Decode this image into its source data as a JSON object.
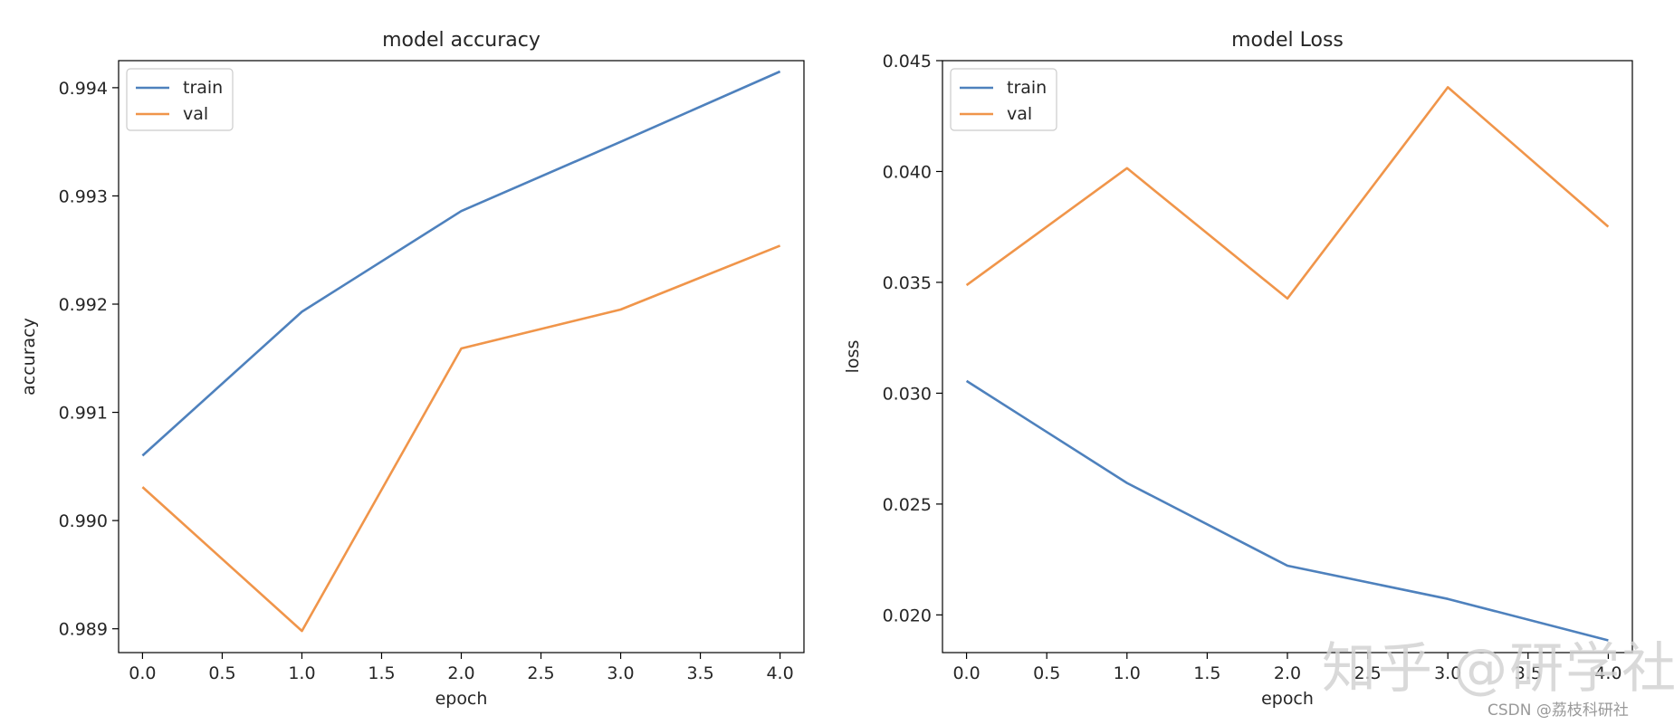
{
  "chart_data": [
    {
      "type": "line",
      "title": "model accuracy",
      "xlabel": "epoch",
      "ylabel": "accuracy",
      "x": [
        0,
        1,
        2,
        3,
        4
      ],
      "series": [
        {
          "name": "train",
          "color": "#4e81bd",
          "values": [
            0.9906,
            0.99193,
            0.99286,
            0.9935,
            0.99415
          ]
        },
        {
          "name": "val",
          "color": "#f0954a",
          "values": [
            0.99031,
            0.98898,
            0.99159,
            0.99195,
            0.99254
          ]
        }
      ],
      "xlim": [
        -0.15,
        4.15
      ],
      "ylim": [
        0.98878,
        0.99425
      ],
      "xticks": [
        0.0,
        0.5,
        1.0,
        1.5,
        2.0,
        2.5,
        3.0,
        3.5,
        4.0
      ],
      "xtick_labels": [
        "0.0",
        "0.5",
        "1.0",
        "1.5",
        "2.0",
        "2.5",
        "3.0",
        "3.5",
        "4.0"
      ],
      "yticks": [
        0.989,
        0.99,
        0.991,
        0.992,
        0.993,
        0.994
      ],
      "ytick_labels": [
        "0.989",
        "0.990",
        "0.991",
        "0.992",
        "0.993",
        "0.994"
      ],
      "grid": false,
      "legend": "upper-left"
    },
    {
      "type": "line",
      "title": "model Loss",
      "xlabel": "epoch",
      "ylabel": "loss",
      "x": [
        0,
        1,
        2,
        3,
        4
      ],
      "series": [
        {
          "name": "train",
          "color": "#4e81bd",
          "values": [
            0.03055,
            0.02595,
            0.02222,
            0.02072,
            0.01885
          ]
        },
        {
          "name": "val",
          "color": "#f0954a",
          "values": [
            0.03487,
            0.04015,
            0.03427,
            0.0438,
            0.03751
          ]
        }
      ],
      "xlim": [
        -0.15,
        4.15
      ],
      "ylim": [
        0.0183,
        0.045
      ],
      "xticks": [
        0.0,
        0.5,
        1.0,
        1.5,
        2.0,
        2.5,
        3.0,
        3.5,
        4.0
      ],
      "xtick_labels": [
        "0.0",
        "0.5",
        "1.0",
        "1.5",
        "2.0",
        "2.5",
        "3.0",
        "3.5",
        "4.0"
      ],
      "yticks": [
        0.02,
        0.025,
        0.03,
        0.035,
        0.04,
        0.045
      ],
      "ytick_labels": [
        "0.020",
        "0.025",
        "0.030",
        "0.035",
        "0.040",
        "0.045"
      ],
      "grid": false,
      "legend": "upper-left"
    }
  ],
  "watermarks": {
    "zhihu": "知乎 @研学社",
    "csdn": "CSDN @荔枝科研社"
  }
}
